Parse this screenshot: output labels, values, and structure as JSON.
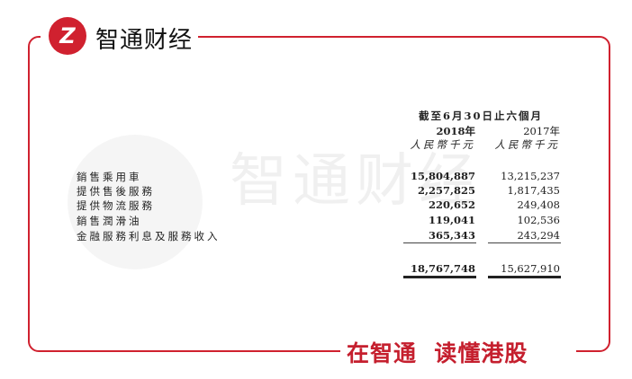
{
  "brand": {
    "logo": "Z",
    "name": "智通财经",
    "slogan": "在智通  读懂港股",
    "watermark": "智通财经",
    "accent": "#d0212f"
  },
  "table": {
    "period_header": "截至6月30日止六個月",
    "columns": [
      {
        "year": "2018年",
        "unit": "人民幣千元"
      },
      {
        "year": "2017年",
        "unit": "人民幣千元"
      }
    ],
    "rows": [
      {
        "label": "銷售乘用車",
        "v2018": "15,804,887",
        "v2017": "13,215,237"
      },
      {
        "label": "提供售後服務",
        "v2018": "2,257,825",
        "v2017": "1,817,435"
      },
      {
        "label": "提供物流服務",
        "v2018": "220,652",
        "v2017": "249,408"
      },
      {
        "label": "銷售潤滑油",
        "v2018": "119,041",
        "v2017": "102,536"
      },
      {
        "label": "金融服務利息及服務收入",
        "v2018": "365,343",
        "v2017": "243,294"
      }
    ],
    "total": {
      "v2018": "18,767,748",
      "v2017": "15,627,910"
    }
  }
}
